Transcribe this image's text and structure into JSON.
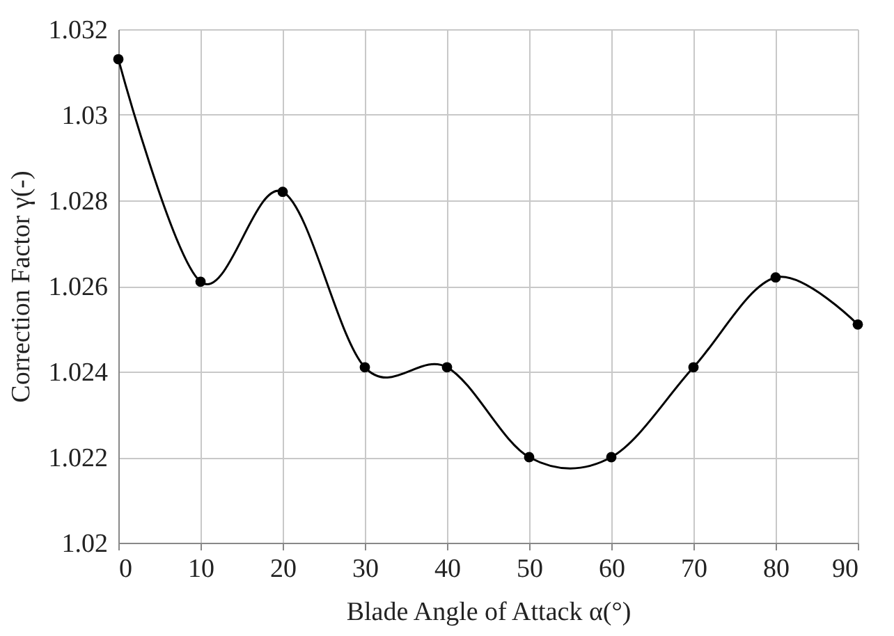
{
  "chart_data": {
    "type": "line",
    "xlabel": "Blade Angle of Attack α(°)",
    "ylabel": "Correction Factor γ(-)",
    "x": [
      0,
      10,
      20,
      30,
      40,
      50,
      60,
      70,
      80,
      90
    ],
    "series": [
      {
        "color": "#000000",
        "values": [
          1.0313,
          1.0261,
          1.0282,
          1.0241,
          1.0241,
          1.022,
          1.022,
          1.0241,
          1.0262,
          1.0251
        ]
      }
    ],
    "xlim": [
      0,
      90
    ],
    "xticks": [
      0,
      10,
      20,
      30,
      40,
      50,
      60,
      70,
      80,
      90
    ],
    "ylim": [
      1.02,
      1.032
    ],
    "yticks": [
      1.02,
      1.022,
      1.024,
      1.026,
      1.028,
      1.03,
      1.032
    ],
    "grid": true,
    "marker": "circle",
    "line_style": "solid",
    "legend": false
  }
}
